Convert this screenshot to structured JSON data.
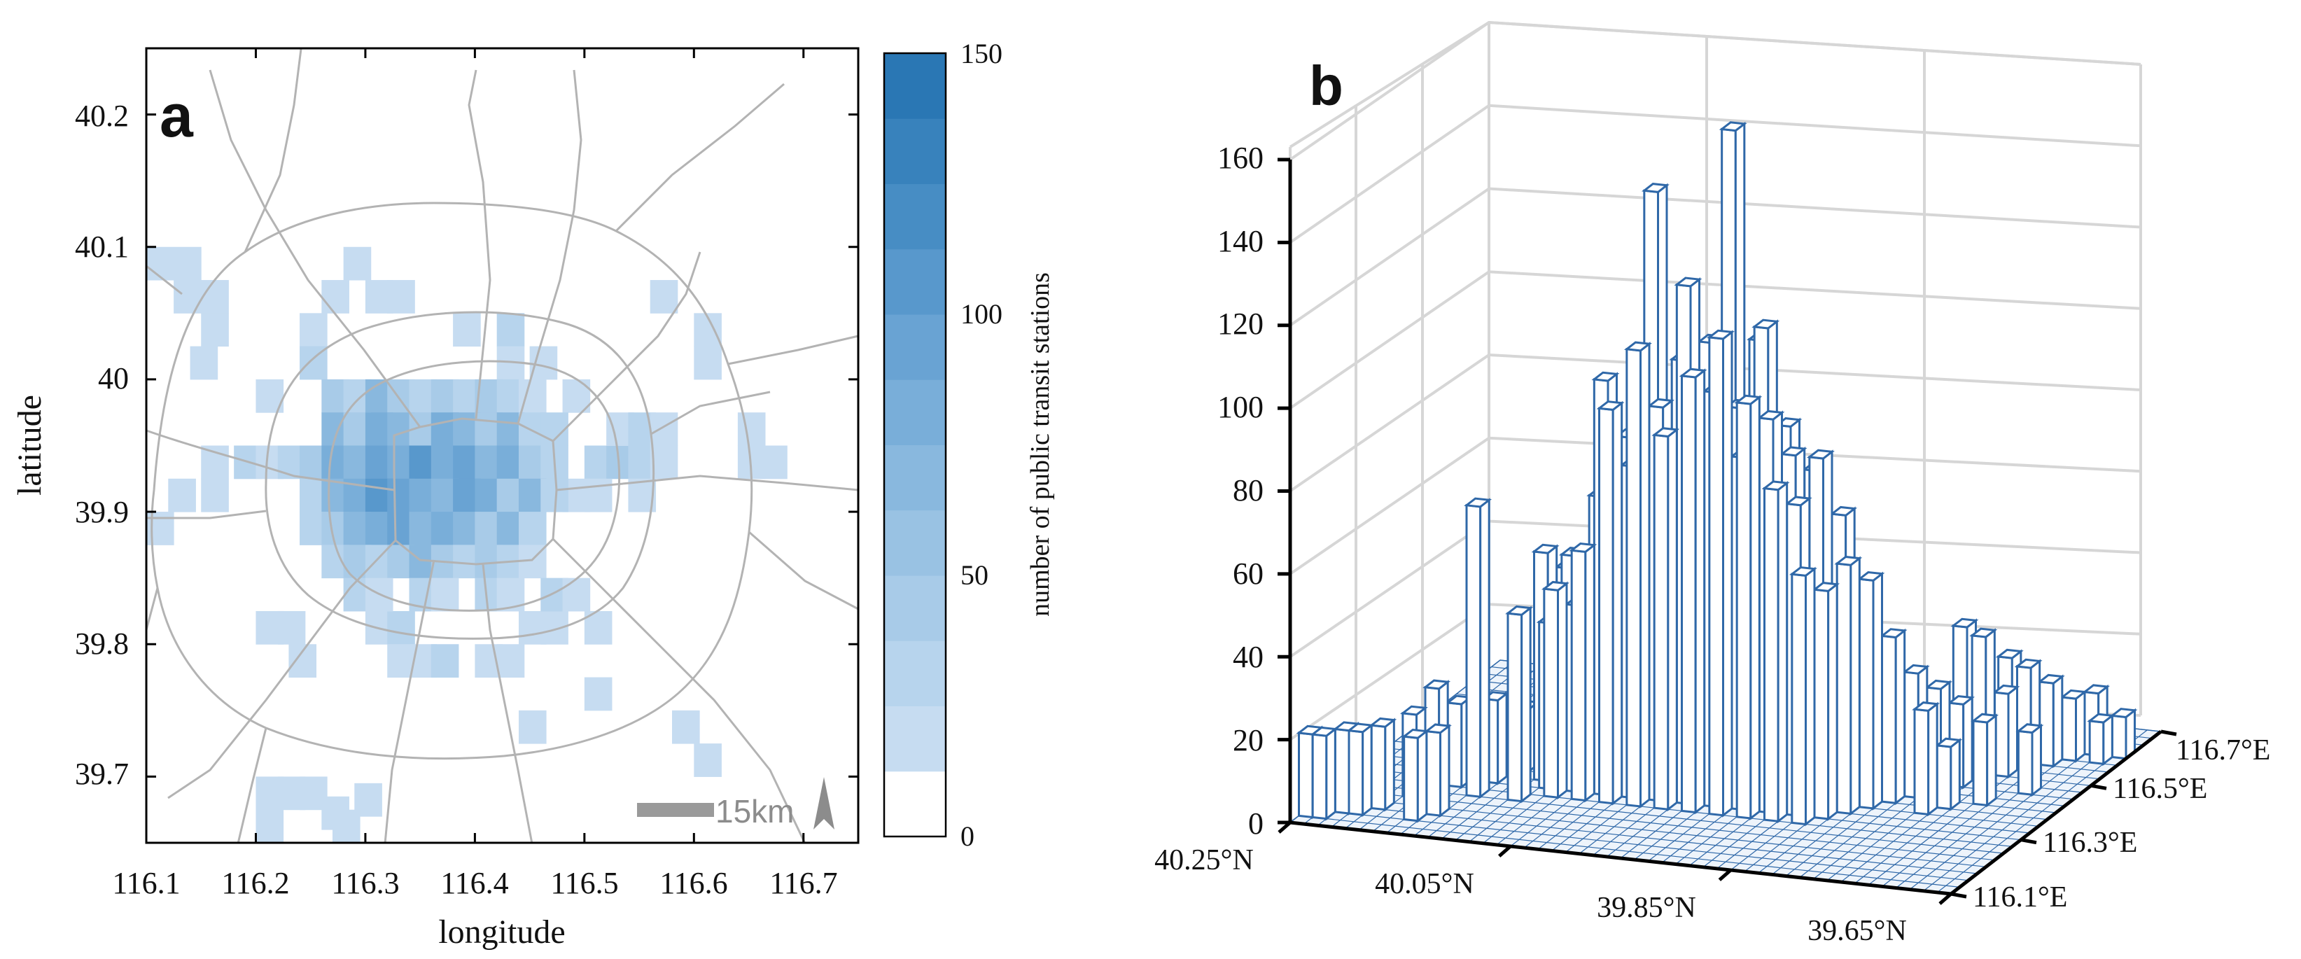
{
  "figure": {
    "panel_a_letter": "a",
    "panel_b_letter": "b",
    "palette": [
      "#ffffff",
      "#c6dcf1",
      "#b7d4ed",
      "#a8cbe8",
      "#99c2e3",
      "#89b8de",
      "#79aed9",
      "#69a3d3",
      "#5898cc",
      "#478dc4",
      "#3882bc",
      "#2a77b4"
    ],
    "road_color": "#b3b3b3",
    "bar_color": "#2f68a8"
  },
  "chart_data": [
    {
      "type": "heatmap",
      "title": "",
      "xlabel": "longitude",
      "ylabel": "latitude",
      "xlim": [
        116.1,
        116.75
      ],
      "ylim": [
        39.65,
        40.25
      ],
      "x_ticks": [
        "116.1",
        "116.2",
        "116.3",
        "116.4",
        "116.5",
        "116.6",
        "116.7"
      ],
      "y_ticks": [
        "39.7",
        "39.8",
        "39.9",
        "40",
        "40.1",
        "40.2"
      ],
      "grid": false,
      "colorbar": {
        "label": "number of public transit stations",
        "range": [
          0,
          150
        ],
        "ticks": [
          "0",
          "50",
          "100",
          "150"
        ]
      },
      "annotations": {
        "scale_bar": "15km"
      },
      "cell_size_deg": 0.025,
      "cells": [
        [
          116.1,
          40.075,
          20
        ],
        [
          116.125,
          40.075,
          20
        ],
        [
          116.125,
          40.05,
          20
        ],
        [
          116.15,
          40.05,
          20
        ],
        [
          116.15,
          40.025,
          20
        ],
        [
          116.14,
          40.0,
          20
        ],
        [
          116.2,
          39.975,
          20
        ],
        [
          116.24,
          40.025,
          20
        ],
        [
          116.24,
          40.0,
          35
        ],
        [
          116.26,
          40.05,
          20
        ],
        [
          116.28,
          40.075,
          20
        ],
        [
          116.3,
          40.05,
          20
        ],
        [
          116.32,
          40.05,
          20
        ],
        [
          116.38,
          40.025,
          20
        ],
        [
          116.42,
          40.025,
          35
        ],
        [
          116.42,
          40.0,
          20
        ],
        [
          116.45,
          40.0,
          20
        ],
        [
          116.48,
          39.975,
          20
        ],
        [
          116.56,
          40.05,
          20
        ],
        [
          116.6,
          40.025,
          20
        ],
        [
          116.6,
          40.0,
          20
        ],
        [
          116.15,
          39.925,
          20
        ],
        [
          116.18,
          39.925,
          35
        ],
        [
          116.2,
          39.925,
          20
        ],
        [
          116.22,
          39.925,
          35
        ],
        [
          116.12,
          39.9,
          20
        ],
        [
          116.15,
          39.9,
          20
        ],
        [
          116.1,
          39.875,
          20
        ],
        [
          116.5,
          39.925,
          35
        ],
        [
          116.52,
          39.925,
          50
        ],
        [
          116.54,
          39.925,
          35
        ],
        [
          116.56,
          39.925,
          20
        ],
        [
          116.52,
          39.95,
          20
        ],
        [
          116.54,
          39.95,
          35
        ],
        [
          116.56,
          39.95,
          20
        ],
        [
          116.48,
          39.9,
          20
        ],
        [
          116.5,
          39.9,
          20
        ],
        [
          116.54,
          39.9,
          20
        ],
        [
          116.64,
          39.95,
          20
        ],
        [
          116.66,
          39.925,
          20
        ],
        [
          116.64,
          39.925,
          20
        ],
        [
          116.2,
          39.8,
          20
        ],
        [
          116.22,
          39.8,
          20
        ],
        [
          116.23,
          39.775,
          20
        ],
        [
          116.3,
          39.8,
          20
        ],
        [
          116.32,
          39.8,
          35
        ],
        [
          116.34,
          39.775,
          20
        ],
        [
          116.36,
          39.775,
          35
        ],
        [
          116.4,
          39.775,
          20
        ],
        [
          116.42,
          39.775,
          20
        ],
        [
          116.32,
          39.775,
          20
        ],
        [
          116.44,
          39.8,
          20
        ],
        [
          116.46,
          39.8,
          20
        ],
        [
          116.5,
          39.8,
          20
        ],
        [
          116.5,
          39.75,
          20
        ],
        [
          116.44,
          39.725,
          20
        ],
        [
          116.58,
          39.725,
          20
        ],
        [
          116.6,
          39.7,
          20
        ],
        [
          116.2,
          39.675,
          20
        ],
        [
          116.22,
          39.675,
          20
        ],
        [
          116.24,
          39.675,
          20
        ],
        [
          116.26,
          39.66,
          20
        ],
        [
          116.29,
          39.67,
          20
        ],
        [
          116.27,
          39.65,
          20
        ],
        [
          116.2,
          39.65,
          20
        ],
        [
          116.26,
          39.975,
          50
        ],
        [
          116.28,
          39.975,
          35
        ],
        [
          116.3,
          39.975,
          65
        ],
        [
          116.32,
          39.975,
          50
        ],
        [
          116.34,
          39.975,
          35
        ],
        [
          116.36,
          39.975,
          50
        ],
        [
          116.38,
          39.975,
          35
        ],
        [
          116.4,
          39.975,
          50
        ],
        [
          116.42,
          39.975,
          35
        ],
        [
          116.44,
          39.975,
          20
        ],
        [
          116.26,
          39.95,
          65
        ],
        [
          116.28,
          39.95,
          50
        ],
        [
          116.3,
          39.95,
          80
        ],
        [
          116.32,
          39.95,
          65
        ],
        [
          116.34,
          39.95,
          50
        ],
        [
          116.36,
          39.95,
          80
        ],
        [
          116.38,
          39.95,
          65
        ],
        [
          116.4,
          39.95,
          50
        ],
        [
          116.42,
          39.95,
          65
        ],
        [
          116.44,
          39.95,
          35
        ],
        [
          116.46,
          39.95,
          35
        ],
        [
          116.24,
          39.925,
          50
        ],
        [
          116.26,
          39.925,
          80
        ],
        [
          116.28,
          39.925,
          65
        ],
        [
          116.3,
          39.925,
          95
        ],
        [
          116.32,
          39.925,
          80
        ],
        [
          116.34,
          39.925,
          110
        ],
        [
          116.36,
          39.925,
          80
        ],
        [
          116.38,
          39.925,
          95
        ],
        [
          116.4,
          39.925,
          65
        ],
        [
          116.42,
          39.925,
          80
        ],
        [
          116.44,
          39.925,
          50
        ],
        [
          116.46,
          39.925,
          35
        ],
        [
          116.24,
          39.9,
          35
        ],
        [
          116.26,
          39.9,
          65
        ],
        [
          116.28,
          39.9,
          80
        ],
        [
          116.3,
          39.9,
          110
        ],
        [
          116.32,
          39.9,
          95
        ],
        [
          116.34,
          39.9,
          80
        ],
        [
          116.36,
          39.9,
          65
        ],
        [
          116.38,
          39.9,
          95
        ],
        [
          116.4,
          39.9,
          80
        ],
        [
          116.42,
          39.9,
          50
        ],
        [
          116.44,
          39.9,
          65
        ],
        [
          116.46,
          39.9,
          35
        ],
        [
          116.24,
          39.875,
          35
        ],
        [
          116.26,
          39.875,
          50
        ],
        [
          116.28,
          39.875,
          65
        ],
        [
          116.3,
          39.875,
          80
        ],
        [
          116.32,
          39.875,
          95
        ],
        [
          116.34,
          39.875,
          65
        ],
        [
          116.36,
          39.875,
          80
        ],
        [
          116.38,
          39.875,
          65
        ],
        [
          116.4,
          39.875,
          50
        ],
        [
          116.42,
          39.875,
          65
        ],
        [
          116.44,
          39.875,
          35
        ],
        [
          116.26,
          39.85,
          35
        ],
        [
          116.28,
          39.85,
          50
        ],
        [
          116.3,
          39.85,
          35
        ],
        [
          116.32,
          39.85,
          50
        ],
        [
          116.34,
          39.85,
          65
        ],
        [
          116.36,
          39.85,
          50
        ],
        [
          116.38,
          39.85,
          35
        ],
        [
          116.4,
          39.85,
          50
        ],
        [
          116.42,
          39.85,
          35
        ],
        [
          116.44,
          39.85,
          20
        ],
        [
          116.28,
          39.825,
          35
        ],
        [
          116.3,
          39.825,
          20
        ],
        [
          116.34,
          39.825,
          35
        ],
        [
          116.36,
          39.825,
          20
        ],
        [
          116.4,
          39.825,
          35
        ],
        [
          116.42,
          39.825,
          20
        ],
        [
          116.46,
          39.825,
          35
        ],
        [
          116.48,
          39.825,
          20
        ]
      ]
    },
    {
      "type": "bar3d",
      "title": "",
      "zlim": [
        0,
        160
      ],
      "z_ticks": [
        "0",
        "20",
        "40",
        "60",
        "80",
        "100",
        "120",
        "140",
        "160"
      ],
      "x_tick_labels": [
        "40.25°N",
        "40.05°N",
        "39.85°N",
        "39.65°N"
      ],
      "y_tick_labels": [
        "116.1°E",
        "116.3°E",
        "116.5°E",
        "116.7°E"
      ],
      "grid": true,
      "bars": [
        [
          0,
          1,
          20
        ],
        [
          1,
          1,
          20
        ],
        [
          2,
          2,
          20
        ],
        [
          3,
          2,
          20
        ],
        [
          4,
          3,
          20
        ],
        [
          5,
          5,
          20
        ],
        [
          6,
          6,
          25
        ],
        [
          7,
          7,
          20
        ],
        [
          7,
          2,
          20
        ],
        [
          8,
          3,
          20
        ],
        [
          9,
          6,
          70
        ],
        [
          9,
          8,
          20
        ],
        [
          10,
          10,
          15
        ],
        [
          11,
          11,
          15
        ],
        [
          12,
          6,
          45
        ],
        [
          12,
          9,
          55
        ],
        [
          12,
          11,
          35
        ],
        [
          13,
          8,
          40
        ],
        [
          13,
          10,
          50
        ],
        [
          13,
          12,
          30
        ],
        [
          14,
          7,
          50
        ],
        [
          14,
          9,
          55
        ],
        [
          14,
          11,
          25
        ],
        [
          15,
          8,
          45
        ],
        [
          15,
          10,
          40
        ],
        [
          15,
          12,
          30
        ],
        [
          16,
          7,
          60
        ],
        [
          16,
          9,
          70
        ],
        [
          16,
          11,
          55
        ],
        [
          16,
          13,
          25
        ],
        [
          17,
          8,
          100
        ],
        [
          17,
          10,
          60
        ],
        [
          17,
          12,
          30
        ],
        [
          17,
          14,
          20
        ],
        [
          18,
          7,
          95
        ],
        [
          18,
          9,
          85
        ],
        [
          18,
          11,
          45
        ],
        [
          18,
          13,
          20
        ],
        [
          19,
          8,
          80
        ],
        [
          19,
          10,
          60
        ],
        [
          19,
          12,
          40
        ],
        [
          20,
          7,
          110
        ],
        [
          20,
          9,
          145
        ],
        [
          20,
          11,
          60
        ],
        [
          20,
          13,
          30
        ],
        [
          21,
          8,
          95
        ],
        [
          21,
          10,
          80
        ],
        [
          21,
          12,
          50
        ],
        [
          21,
          14,
          25
        ],
        [
          22,
          7,
          90
        ],
        [
          22,
          9,
          105
        ],
        [
          22,
          11,
          70
        ],
        [
          22,
          13,
          35
        ],
        [
          23,
          8,
          125
        ],
        [
          23,
          10,
          100
        ],
        [
          23,
          12,
          45
        ],
        [
          24,
          7,
          105
        ],
        [
          24,
          9,
          110
        ],
        [
          24,
          11,
          75
        ],
        [
          24,
          13,
          40
        ],
        [
          25,
          8,
          100
        ],
        [
          25,
          10,
          160
        ],
        [
          25,
          12,
          55
        ],
        [
          25,
          14,
          30
        ],
        [
          26,
          7,
          115
        ],
        [
          26,
          9,
          95
        ],
        [
          26,
          11,
          80
        ],
        [
          27,
          8,
          85
        ],
        [
          27,
          10,
          110
        ],
        [
          27,
          12,
          60
        ],
        [
          27,
          14,
          25
        ],
        [
          28,
          7,
          100
        ],
        [
          28,
          9,
          115
        ],
        [
          28,
          11,
          70
        ],
        [
          28,
          13,
          40
        ],
        [
          29,
          8,
          95
        ],
        [
          29,
          10,
          90
        ],
        [
          29,
          12,
          65
        ],
        [
          30,
          7,
          80
        ],
        [
          30,
          9,
          85
        ],
        [
          30,
          11,
          55
        ],
        [
          30,
          13,
          30
        ],
        [
          31,
          8,
          75
        ],
        [
          31,
          10,
          80
        ],
        [
          31,
          12,
          45
        ],
        [
          32,
          7,
          60
        ],
        [
          32,
          9,
          85
        ],
        [
          32,
          11,
          50
        ],
        [
          33,
          8,
          55
        ],
        [
          33,
          10,
          70
        ],
        [
          33,
          12,
          40
        ],
        [
          34,
          9,
          60
        ],
        [
          34,
          11,
          35
        ],
        [
          35,
          10,
          55
        ],
        [
          35,
          12,
          35
        ],
        [
          36,
          11,
          40
        ],
        [
          37,
          12,
          30
        ],
        [
          38,
          13,
          25
        ],
        [
          38,
          16,
          35
        ],
        [
          39,
          14,
          20
        ],
        [
          40,
          15,
          35
        ],
        [
          40,
          18,
          25
        ],
        [
          41,
          16,
          20
        ],
        [
          42,
          17,
          25
        ],
        [
          43,
          18,
          20
        ],
        [
          44,
          19,
          15
        ],
        [
          45,
          20,
          15
        ],
        [
          46,
          19,
          10
        ],
        [
          47,
          20,
          10
        ],
        [
          44,
          14,
          15
        ],
        [
          42,
          12,
          20
        ],
        [
          40,
          11,
          15
        ],
        [
          39,
          10,
          25
        ],
        [
          36,
          14,
          15
        ],
        [
          34,
          15,
          20
        ]
      ]
    }
  ]
}
